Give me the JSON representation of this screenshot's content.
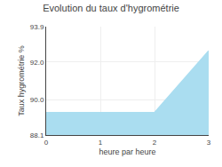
{
  "chart_data": {
    "type": "area",
    "title": "Evolution du taux d'hygrométrie",
    "xlabel": "heure par heure",
    "ylabel": "Taux hygrométrie %",
    "x": [
      0,
      1,
      2,
      3
    ],
    "values": [
      89.3,
      89.3,
      89.3,
      92.6
    ],
    "color": "#aaddf0",
    "xlim": [
      0,
      3
    ],
    "xticks": [
      0,
      1,
      2,
      3
    ],
    "ylim": [
      88.1,
      93.9
    ],
    "yticks": [
      88.1,
      {
        "value": 90.0,
        "label": "90.0"
      },
      {
        "value": 92.0,
        "label": "92.0"
      },
      93.9
    ],
    "grid": true
  }
}
